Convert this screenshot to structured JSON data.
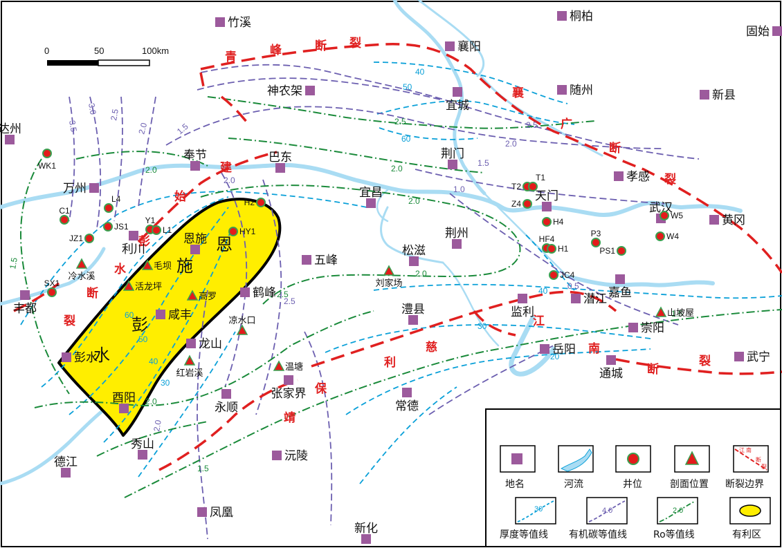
{
  "scale_bar": {
    "labels": [
      "0",
      "50",
      "100km"
    ]
  },
  "cities": [
    "竹溪",
    "桐柏",
    "固始",
    "襄阳",
    "神农架",
    "随州",
    "新县",
    "宜城",
    "达州",
    "荆门",
    "孝感",
    "奉节",
    "巴东",
    "宜昌",
    "天门",
    "万州",
    "武汉",
    "黄冈",
    "利川",
    "恩施",
    "荆州",
    "松滋",
    "五峰",
    "鹤峰",
    "咸丰",
    "潜江",
    "嘉鱼",
    "监利",
    "澧县",
    "丰都",
    "龙山",
    "崇阳",
    "岳阳",
    "彭水",
    "通城",
    "武宁",
    "永顺",
    "张家界",
    "常德",
    "酉阳",
    "秀山",
    "沅陵",
    "德江",
    "凤凰",
    "新化"
  ],
  "wells": [
    "WK1",
    "L4",
    "C1",
    "JS1",
    "JZ1",
    "Y1",
    "L1",
    "SX1",
    "H2",
    "HY1",
    "T2",
    "T1",
    "Z4",
    "H4",
    "HF4",
    "H1",
    "P3",
    "PS1",
    "W5",
    "W4",
    "JC4"
  ],
  "sections": [
    "冷水溪",
    "毛坝",
    "活龙坪",
    "高罗",
    "凉水口",
    "红岩溪",
    "刘家场",
    "温塘",
    "山坡屋"
  ],
  "fault_chars": [
    "青",
    "峰",
    "断",
    "裂",
    "襄",
    "广",
    "断",
    "裂",
    "建",
    "始",
    "彭",
    "水",
    "断",
    "裂",
    "江",
    "南",
    "断",
    "裂",
    "保",
    "靖",
    "利",
    "慈"
  ],
  "favorable_text": [
    "恩",
    "施",
    "彭",
    "水"
  ],
  "thickness_labels": [
    "40",
    "50",
    "60",
    "40",
    "30",
    "20",
    "60",
    "50",
    "40",
    "30"
  ],
  "toc_labels": [
    "3.5",
    "3.0",
    "2.5",
    "2.0",
    "1.5",
    "2.5",
    "2.0",
    "1.5",
    "1.0",
    "2.5",
    "2.0",
    "0.5",
    "2.0"
  ],
  "ro_labels": [
    "2.0",
    "2.5",
    "2.0",
    "1.5",
    "2.0",
    "2.5",
    "2.0",
    "2.0",
    "1.5",
    "1.5"
  ],
  "legend": {
    "items": [
      "地名",
      "河流",
      "井位",
      "剖面位置",
      "断裂边界",
      "厚度等值线",
      "有机碳等值线",
      "Ro等值线",
      "有利区"
    ],
    "fault_sample_text": [
      "江",
      "南",
      "断",
      "裂"
    ],
    "thickness_sample": "30",
    "toc_sample": "4.0",
    "ro_sample": "2.0"
  },
  "colors": {
    "city": "#9c5a9c",
    "river": "#a9dcf3",
    "well": "#e31b1b",
    "well_ring": "#3aa050",
    "fault": "#e02020",
    "thickness": "#0aa0d8",
    "toc": "#6c5fb0",
    "ro": "#1a8a3a",
    "favorable": "#ffee00"
  }
}
